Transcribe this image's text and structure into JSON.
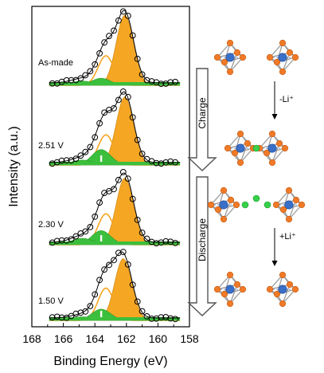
{
  "chart_data": {
    "type": "line",
    "title": "",
    "xlabel": "Binding Energy (eV)",
    "ylabel": "Intensity (a.u.)",
    "xlim": [
      168,
      158
    ],
    "x_ticks": [
      "168",
      "166",
      "164",
      "162",
      "160",
      "158"
    ],
    "x_reversed": true,
    "grid": false,
    "legend": "none",
    "panels": [
      {
        "label": "As-made",
        "components": [
          {
            "type": "main",
            "center": 162.1,
            "height": 1.0,
            "width": 0.55
          },
          {
            "type": "shoulder",
            "center": 163.3,
            "height": 0.42,
            "width": 0.5
          },
          {
            "type": "minor",
            "center": 163.6,
            "height": 0.1,
            "width": 0.6
          },
          {
            "type": "background",
            "center": 164.8,
            "height": 0.06,
            "width": 0.7
          }
        ]
      },
      {
        "label": "2.51 V",
        "components": [
          {
            "type": "main",
            "center": 162.1,
            "height": 0.97,
            "width": 0.55
          },
          {
            "type": "shoulder",
            "center": 163.3,
            "height": 0.43,
            "width": 0.5
          },
          {
            "type": "minor",
            "center": 163.6,
            "height": 0.22,
            "width": 0.6
          },
          {
            "type": "background",
            "center": 164.8,
            "height": 0.07,
            "width": 0.7
          }
        ]
      },
      {
        "label": "2.30 V",
        "components": [
          {
            "type": "main",
            "center": 162.1,
            "height": 0.95,
            "width": 0.55
          },
          {
            "type": "shoulder",
            "center": 163.3,
            "height": 0.44,
            "width": 0.5
          },
          {
            "type": "minor",
            "center": 163.6,
            "height": 0.2,
            "width": 0.6
          },
          {
            "type": "background",
            "center": 164.8,
            "height": 0.09,
            "width": 0.7
          }
        ]
      },
      {
        "label": "1.50 V",
        "components": [
          {
            "type": "main",
            "center": 162.2,
            "height": 0.88,
            "width": 0.55
          },
          {
            "type": "shoulder",
            "center": 163.3,
            "height": 0.46,
            "width": 0.5
          },
          {
            "type": "minor",
            "center": 163.6,
            "height": 0.16,
            "width": 0.6
          },
          {
            "type": "background",
            "center": 164.8,
            "height": 0.05,
            "width": 0.7
          }
        ]
      }
    ],
    "process_arrows": [
      {
        "label": "Charge"
      },
      {
        "label": "Discharge"
      }
    ],
    "reaction_labels": [
      {
        "label": "-Li⁺"
      },
      {
        "label": "+Li⁺"
      }
    ],
    "colors": {
      "main_fill": "#f5a623",
      "shoulder_line": "#f5a623",
      "minor_fill": "#3cbf3c",
      "background_fill": "#3cbf3c",
      "data_marker": "#000000",
      "fit_line": "#000000",
      "atom_orange": "#f07a28",
      "atom_blue": "#3a6fc8",
      "atom_green": "#37d04a",
      "bond": "#9a9a9a"
    }
  }
}
